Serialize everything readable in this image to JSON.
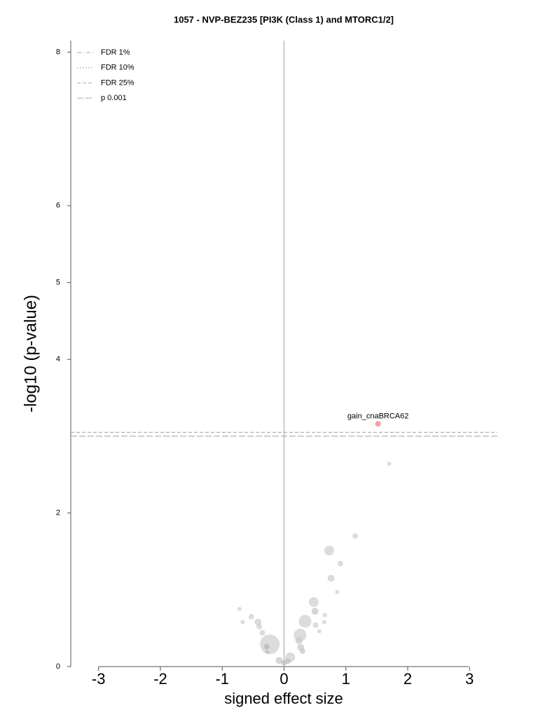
{
  "chart_data": {
    "type": "scatter",
    "title": "1057 - NVP-BEZ235 [PI3K (Class 1) and MTORC1/2]",
    "xlabel": "signed effect size",
    "ylabel": "-log10 (p-value)",
    "xlim": [
      -3.45,
      3.45
    ],
    "ylim": [
      0,
      8.15
    ],
    "xticks": [
      -3,
      -2,
      -1,
      0,
      1,
      2,
      3
    ],
    "yticks": [
      0,
      2,
      4,
      5,
      6,
      8
    ],
    "vline": 0,
    "reference_lines": [
      {
        "name": "FDR 1%",
        "dash": "6,3,1,3",
        "value": null
      },
      {
        "name": "FDR 10%",
        "dash": "2,2",
        "value": null
      },
      {
        "name": "FDR 25%",
        "dash": "5,3",
        "value": 3.05
      },
      {
        "name": "p 0.001",
        "dash": "9,3",
        "value": 3.0
      }
    ],
    "x": [
      1.52,
      1.7,
      1.15,
      0.73,
      0.91,
      0.76,
      0.86,
      0.48,
      0.5,
      0.34,
      0.66,
      0.65,
      0.51,
      0.57,
      0.26,
      0.24,
      0.27,
      0.3,
      0.1,
      0.06,
      -0.08,
      0,
      -0.23,
      -0.28,
      -0.27,
      -0.35,
      -0.4,
      -0.42,
      -0.53,
      -0.72,
      -0.67
    ],
    "values": [
      3.16,
      2.64,
      1.7,
      1.51,
      1.34,
      1.15,
      0.97,
      0.84,
      0.72,
      0.59,
      0.67,
      0.58,
      0.54,
      0.46,
      0.41,
      0.34,
      0.25,
      0.2,
      0.12,
      0.07,
      0.08,
      0.05,
      0.29,
      0.26,
      0.19,
      0.44,
      0.52,
      0.58,
      0.65,
      0.75,
      0.58
    ],
    "sizes": [
      4,
      3,
      4,
      7,
      4,
      5,
      3,
      7,
      5,
      9,
      3,
      3,
      4,
      3,
      9,
      5,
      5,
      4,
      7,
      4,
      5,
      4,
      14,
      4,
      3,
      4,
      4,
      5,
      4,
      3,
      3
    ],
    "colors": [
      "#f08080",
      "#d0d0d0",
      "#d0d0d0",
      "#d0d0d0",
      "#d0d0d0",
      "#d0d0d0",
      "#d0d0d0",
      "#d0d0d0",
      "#c8c8c8",
      "#d0d0d0",
      "#d0d0d0",
      "#d0d0d0",
      "#d0d0d0",
      "#d0d0d0",
      "#d0d0d0",
      "#c8c8c8",
      "#c8c8c8",
      "#c8c8c8",
      "#d0d0d0",
      "#c0c0c0",
      "#c8c8c8",
      "#c0c0c0",
      "#d0d0d0",
      "#b8b8b8",
      "#c0c0c0",
      "#d0d0d0",
      "#d0d0d0",
      "#d0d0d0",
      "#d0d0d0",
      "#d0d0d0",
      "#d0d0d0"
    ],
    "labels": [
      "gain_cnaBRCA62",
      null,
      null,
      null,
      null,
      null,
      null,
      null,
      null,
      null,
      null,
      null,
      null,
      null,
      null,
      null,
      null,
      null,
      null,
      null,
      null,
      null,
      null,
      null,
      null,
      null,
      null,
      null,
      null,
      null,
      null
    ]
  }
}
